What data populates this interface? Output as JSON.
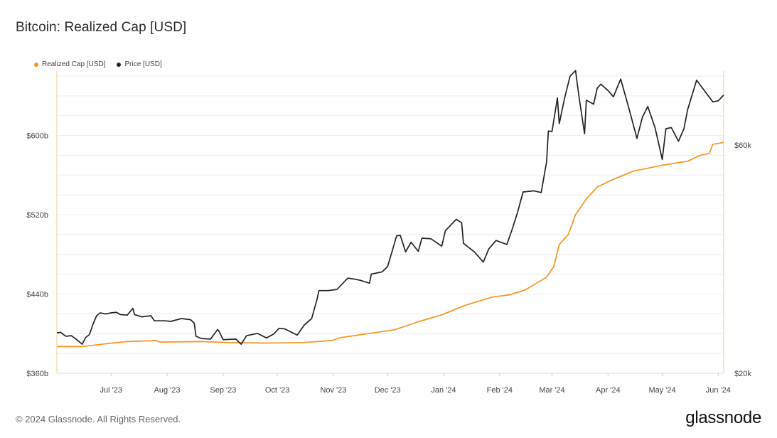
{
  "title": "Bitcoin: Realized Cap [USD]",
  "footer": {
    "copyright": "© 2024 Glassnode. All Rights Reserved.",
    "brand": "glassnode"
  },
  "chart_data": {
    "type": "line",
    "x_axis": {
      "range": [
        "2023-06-01",
        "2024-06-04"
      ],
      "tick_labels": [
        "Jul '23",
        "Aug '23",
        "Sep '23",
        "Oct '23",
        "Nov '23",
        "Dec '23",
        "Jan '24",
        "Feb '24",
        "Mar '24",
        "Apr '24",
        "May '24",
        "Jun '24"
      ]
    },
    "y_left": {
      "label": "",
      "range": [
        360,
        665
      ],
      "unit": "USD billions",
      "tick_labels": [
        "$360b",
        "$440b",
        "$520b",
        "$600b"
      ],
      "tick_values": [
        360,
        440,
        520,
        600
      ]
    },
    "y_right": {
      "label": "",
      "range": [
        20000,
        73000
      ],
      "scale": "linear",
      "tick_labels": [
        "$20k",
        "$60k"
      ],
      "tick_values": [
        20000,
        60000
      ]
    },
    "grid": true,
    "legend": {
      "position": "top-left"
    },
    "series": [
      {
        "name": "Realized Cap [USD]",
        "axis": "left",
        "color": "#f7931a",
        "points": [
          [
            "2023-06-01",
            387
          ],
          [
            "2023-06-15",
            387
          ],
          [
            "2023-06-29",
            390
          ],
          [
            "2023-07-10",
            392
          ],
          [
            "2023-07-26",
            393
          ],
          [
            "2023-07-28",
            391.5
          ],
          [
            "2023-08-20",
            392
          ],
          [
            "2023-09-05",
            391
          ],
          [
            "2023-09-25",
            390.5
          ],
          [
            "2023-10-15",
            391
          ],
          [
            "2023-10-31",
            393
          ],
          [
            "2023-11-05",
            396
          ],
          [
            "2023-11-20",
            400
          ],
          [
            "2023-12-05",
            404
          ],
          [
            "2023-12-18",
            412
          ],
          [
            "2023-12-31",
            419
          ],
          [
            "2024-01-12",
            428
          ],
          [
            "2024-01-28",
            437
          ],
          [
            "2024-02-06",
            439
          ],
          [
            "2024-02-15",
            444
          ],
          [
            "2024-02-27",
            457
          ],
          [
            "2024-03-02",
            468
          ],
          [
            "2024-03-05",
            490
          ],
          [
            "2024-03-10",
            500
          ],
          [
            "2024-03-14",
            520
          ],
          [
            "2024-03-20",
            536
          ],
          [
            "2024-03-26",
            548
          ],
          [
            "2024-04-03",
            555
          ],
          [
            "2024-04-15",
            564
          ],
          [
            "2024-05-01",
            570
          ],
          [
            "2024-05-15",
            574
          ],
          [
            "2024-05-22",
            580
          ],
          [
            "2024-05-27",
            582
          ],
          [
            "2024-05-29",
            591
          ],
          [
            "2024-06-04",
            593
          ]
        ]
      },
      {
        "name": "Price [USD]",
        "axis": "right",
        "color": "#222222",
        "points": [
          [
            "2023-06-01",
            27100
          ],
          [
            "2023-06-03",
            27200
          ],
          [
            "2023-06-06",
            26500
          ],
          [
            "2023-06-09",
            26600
          ],
          [
            "2023-06-12",
            25900
          ],
          [
            "2023-06-15",
            25100
          ],
          [
            "2023-06-17",
            26300
          ],
          [
            "2023-06-19",
            26800
          ],
          [
            "2023-06-21",
            28600
          ],
          [
            "2023-06-23",
            30100
          ],
          [
            "2023-06-25",
            30600
          ],
          [
            "2023-06-28",
            30400
          ],
          [
            "2023-07-01",
            30600
          ],
          [
            "2023-07-04",
            30700
          ],
          [
            "2023-07-06",
            30300
          ],
          [
            "2023-07-10",
            30200
          ],
          [
            "2023-07-13",
            31400
          ],
          [
            "2023-07-14",
            30300
          ],
          [
            "2023-07-18",
            29900
          ],
          [
            "2023-07-23",
            30100
          ],
          [
            "2023-07-25",
            29200
          ],
          [
            "2023-07-31",
            29200
          ],
          [
            "2023-08-03",
            29100
          ],
          [
            "2023-08-09",
            29600
          ],
          [
            "2023-08-14",
            29400
          ],
          [
            "2023-08-16",
            28800
          ],
          [
            "2023-08-17",
            26500
          ],
          [
            "2023-08-20",
            26100
          ],
          [
            "2023-08-25",
            26000
          ],
          [
            "2023-08-29",
            27700
          ],
          [
            "2023-08-30",
            27200
          ],
          [
            "2023-09-01",
            25900
          ],
          [
            "2023-09-08",
            26000
          ],
          [
            "2023-09-11",
            25100
          ],
          [
            "2023-09-14",
            26600
          ],
          [
            "2023-09-20",
            27000
          ],
          [
            "2023-09-25",
            26200
          ],
          [
            "2023-09-29",
            26900
          ],
          [
            "2023-10-02",
            27900
          ],
          [
            "2023-10-05",
            27800
          ],
          [
            "2023-10-12",
            26700
          ],
          [
            "2023-10-16",
            28500
          ],
          [
            "2023-10-20",
            29600
          ],
          [
            "2023-10-23",
            33000
          ],
          [
            "2023-10-24",
            34500
          ],
          [
            "2023-10-29",
            34500
          ],
          [
            "2023-11-03",
            34700
          ],
          [
            "2023-11-09",
            36700
          ],
          [
            "2023-11-13",
            36500
          ],
          [
            "2023-11-16",
            36300
          ],
          [
            "2023-11-21",
            35800
          ],
          [
            "2023-11-22",
            37400
          ],
          [
            "2023-11-28",
            37800
          ],
          [
            "2023-12-01",
            38700
          ],
          [
            "2023-12-04",
            41900
          ],
          [
            "2023-12-06",
            44100
          ],
          [
            "2023-12-08",
            44200
          ],
          [
            "2023-12-11",
            41300
          ],
          [
            "2023-12-14",
            43000
          ],
          [
            "2023-12-18",
            41400
          ],
          [
            "2023-12-20",
            43700
          ],
          [
            "2023-12-25",
            43600
          ],
          [
            "2023-12-31",
            42300
          ],
          [
            "2024-01-02",
            45000
          ],
          [
            "2024-01-08",
            47000
          ],
          [
            "2024-01-10",
            46600
          ],
          [
            "2024-01-11",
            46400
          ],
          [
            "2024-01-12",
            42800
          ],
          [
            "2024-01-18",
            41300
          ],
          [
            "2024-01-23",
            39500
          ],
          [
            "2024-01-26",
            41800
          ],
          [
            "2024-01-30",
            43300
          ],
          [
            "2024-02-05",
            42600
          ],
          [
            "2024-02-08",
            45300
          ],
          [
            "2024-02-11",
            48300
          ],
          [
            "2024-02-14",
            51800
          ],
          [
            "2024-02-20",
            52000
          ],
          [
            "2024-02-24",
            51700
          ],
          [
            "2024-02-27",
            57100
          ],
          [
            "2024-02-28",
            62500
          ],
          [
            "2024-03-01",
            62400
          ],
          [
            "2024-03-04",
            68300
          ],
          [
            "2024-03-05",
            63800
          ],
          [
            "2024-03-08",
            68300
          ],
          [
            "2024-03-11",
            72100
          ],
          [
            "2024-03-14",
            73100
          ],
          [
            "2024-03-16",
            68400
          ],
          [
            "2024-03-19",
            62000
          ],
          [
            "2024-03-20",
            67900
          ],
          [
            "2024-03-24",
            67200
          ],
          [
            "2024-03-26",
            70000
          ],
          [
            "2024-03-28",
            70700
          ],
          [
            "2024-04-01",
            69600
          ],
          [
            "2024-04-04",
            68500
          ],
          [
            "2024-04-08",
            71600
          ],
          [
            "2024-04-12",
            67100
          ],
          [
            "2024-04-17",
            61200
          ],
          [
            "2024-04-20",
            64900
          ],
          [
            "2024-04-23",
            66800
          ],
          [
            "2024-04-27",
            63100
          ],
          [
            "2024-05-01",
            57500
          ],
          [
            "2024-05-03",
            62900
          ],
          [
            "2024-05-06",
            63100
          ],
          [
            "2024-05-10",
            60700
          ],
          [
            "2024-05-13",
            62900
          ],
          [
            "2024-05-15",
            66200
          ],
          [
            "2024-05-20",
            71400
          ],
          [
            "2024-05-25",
            69300
          ],
          [
            "2024-05-29",
            67600
          ],
          [
            "2024-06-01",
            67800
          ],
          [
            "2024-06-04",
            68800
          ]
        ]
      }
    ]
  }
}
